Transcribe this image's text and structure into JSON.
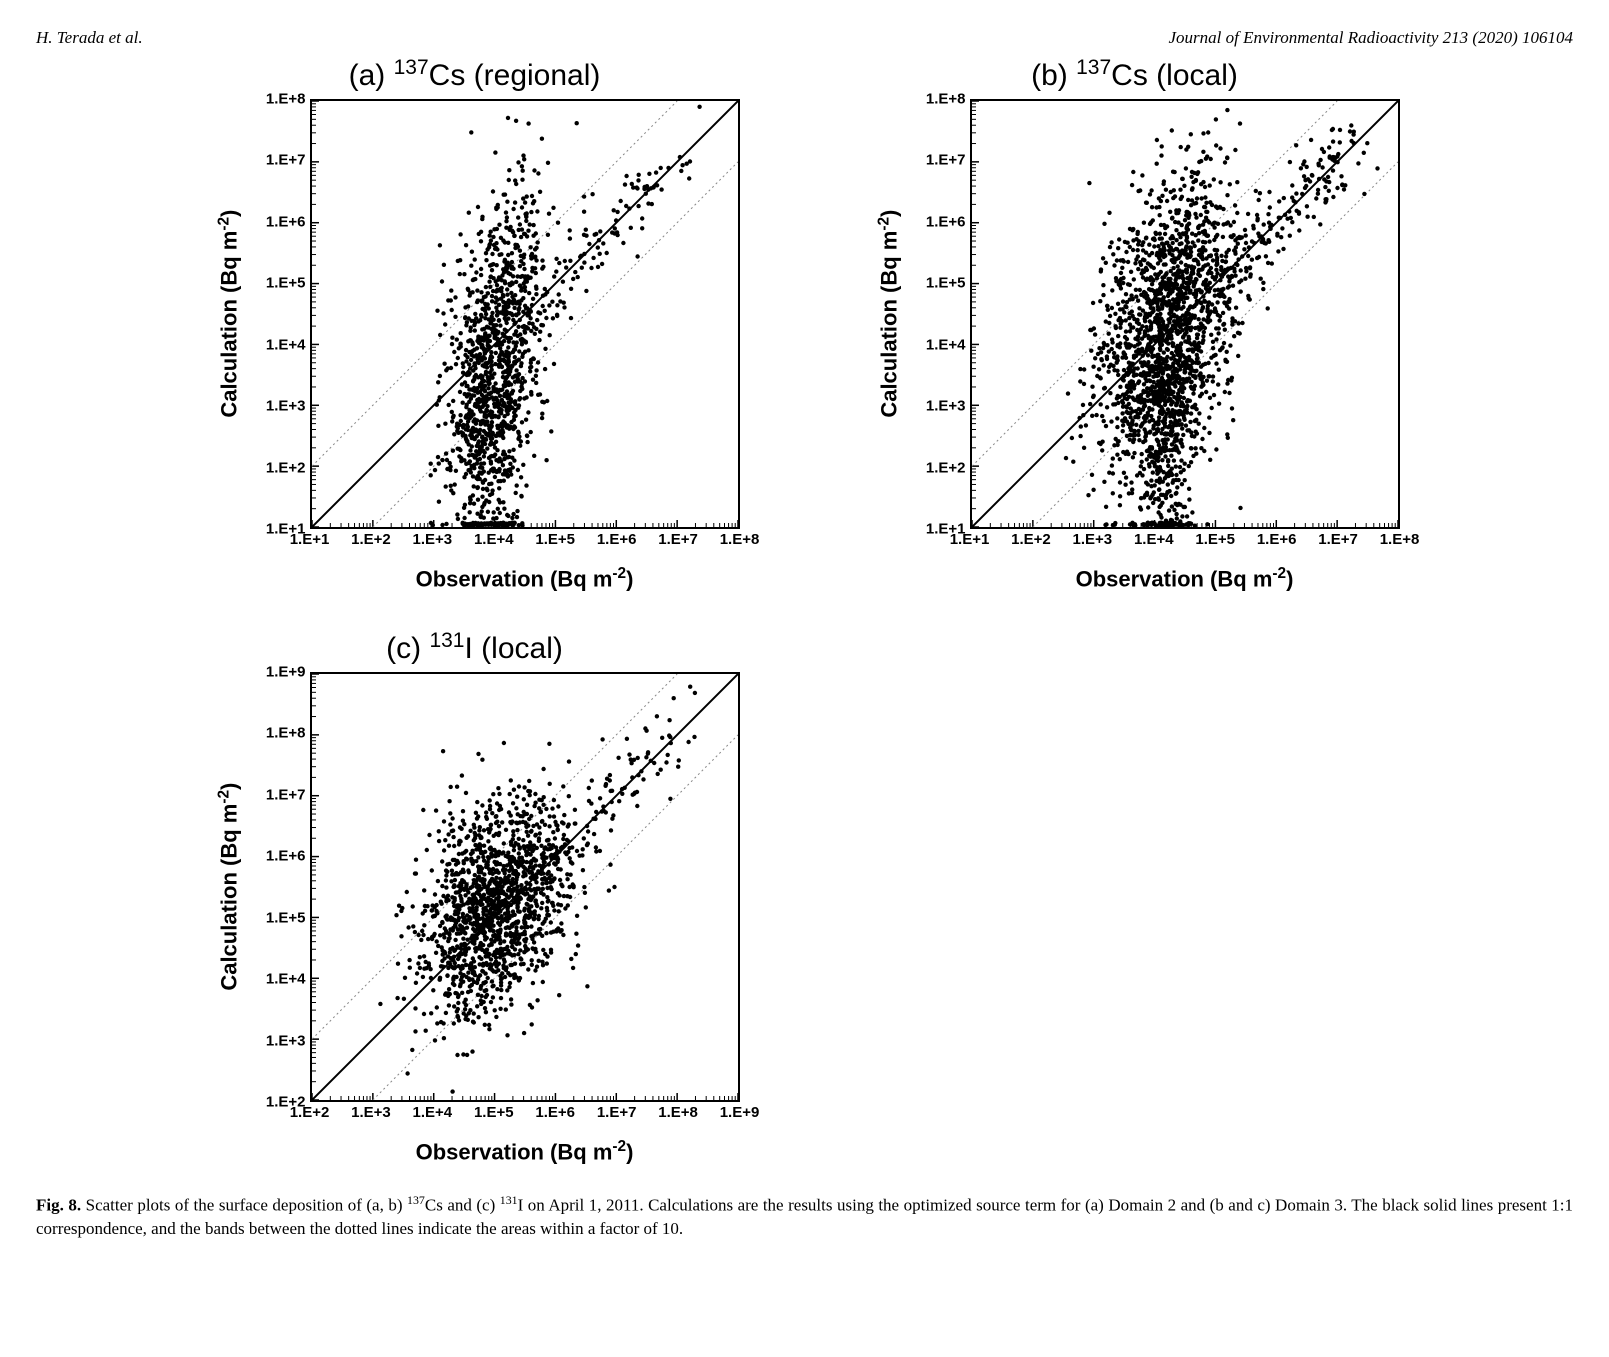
{
  "header_left": "H. Terada et al.",
  "header_right": "Journal of Environmental Radioactivity 213 (2020) 106104",
  "common": {
    "xlabel_prefix": "Observation (Bq m",
    "xlabel_sup": "-2",
    "xlabel_suffix": ")",
    "ylabel_prefix": "Calculation (Bq m",
    "ylabel_sup": "-2",
    "ylabel_suffix": ")",
    "marker_color": "#000000",
    "marker_radius": 2.2,
    "line_color_solid": "#000000",
    "line_color_dotted": "#888888",
    "line_width_solid": 2,
    "line_width_dotted": 1,
    "background_color": "#ffffff",
    "font_tick": 15,
    "font_label": 22,
    "font_title": 30
  },
  "panels": [
    {
      "id": "a",
      "title_prefix": "(a) ",
      "title_sup": "137",
      "title_main": "Cs (regional)",
      "log_min": 1,
      "log_max": 8,
      "ticks": [
        "1.E+1",
        "1.E+2",
        "1.E+3",
        "1.E+4",
        "1.E+5",
        "1.E+6",
        "1.E+7",
        "1.E+8"
      ],
      "cluster": {
        "obs_log_mean": 4.0,
        "calc_log_mean": 3.8,
        "obs_log_sd": 0.4,
        "calc_log_sd": 1.3,
        "n": 1400,
        "corr": 0.4,
        "tail_down": true
      }
    },
    {
      "id": "b",
      "title_prefix": "(b) ",
      "title_sup": "137",
      "title_main": "Cs (local)",
      "log_min": 1,
      "log_max": 8,
      "ticks": [
        "1.E+1",
        "1.E+2",
        "1.E+3",
        "1.E+4",
        "1.E+5",
        "1.E+6",
        "1.E+7",
        "1.E+8"
      ],
      "cluster": {
        "obs_log_mean": 4.2,
        "calc_log_mean": 4.2,
        "obs_log_sd": 0.55,
        "calc_log_sd": 1.3,
        "n": 2200,
        "corr": 0.4,
        "tail_down": true
      }
    },
    {
      "id": "c",
      "title_prefix": "(c) ",
      "title_sup": "131",
      "title_main": "I (local)",
      "log_min": 2,
      "log_max": 9,
      "ticks": [
        "1.E+2",
        "1.E+3",
        "1.E+4",
        "1.E+5",
        "1.E+6",
        "1.E+7",
        "1.E+8",
        "1.E+9"
      ],
      "cluster": {
        "obs_log_mean": 5.0,
        "calc_log_mean": 5.2,
        "obs_log_sd": 0.6,
        "calc_log_sd": 0.9,
        "n": 1600,
        "corr": 0.35,
        "tail_down": false
      }
    }
  ],
  "caption_strong": "Fig. 8.",
  "caption_text_1": "  Scatter plots of the surface deposition of (a, b) ",
  "caption_sup_1": "137",
  "caption_text_2": "Cs and (c) ",
  "caption_sup_2": "131",
  "caption_text_3": "I on April 1, 2011. Calculations are the results using the optimized source term for (a) Domain 2 and (b and c) Domain 3. The black solid lines present 1:1 correspondence, and the bands between the dotted lines indicate the areas within a factor of 10."
}
